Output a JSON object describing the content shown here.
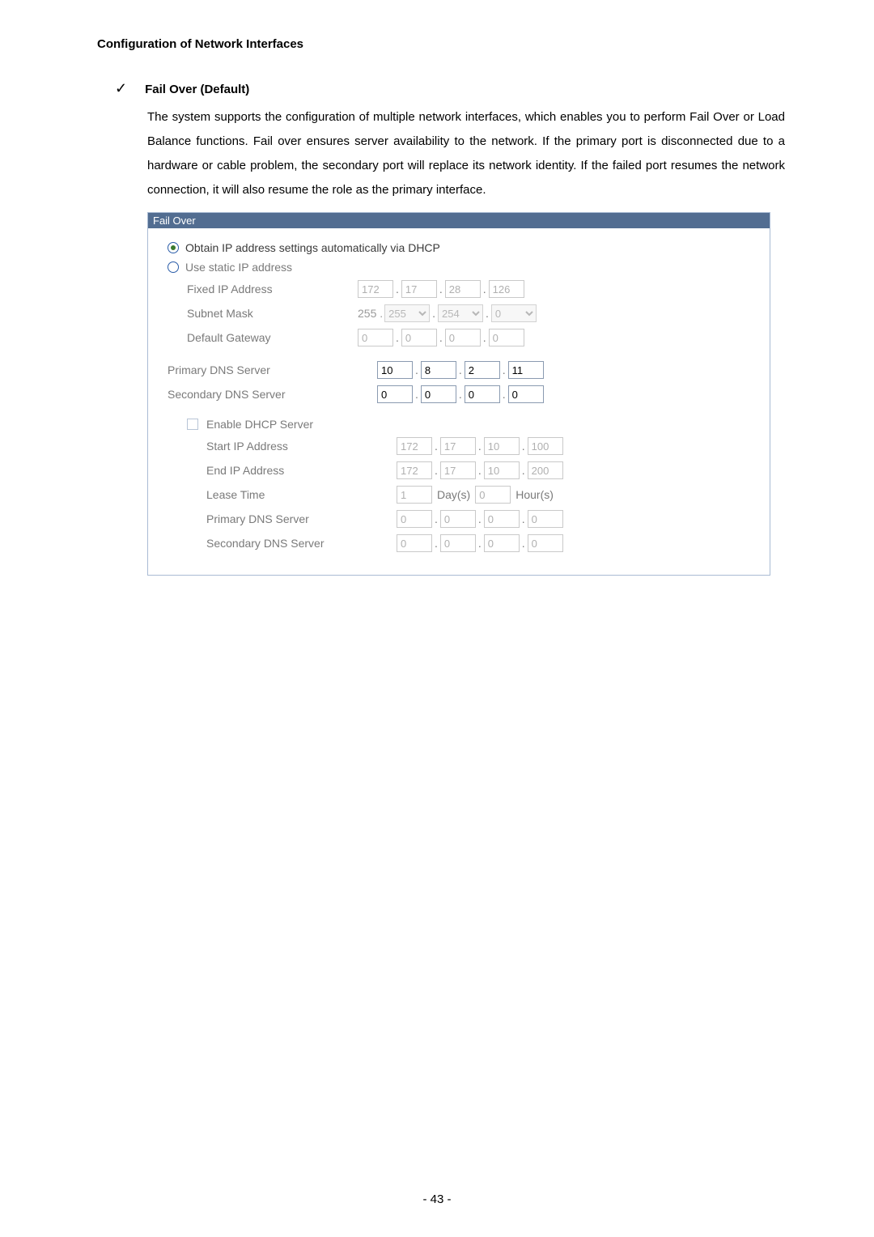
{
  "section": {
    "title": "Configuration of Network Interfaces"
  },
  "bullet": {
    "title": "Fail Over (Default)"
  },
  "description": "The system supports the configuration of multiple network interfaces, which enables you to perform Fail Over or Load Balance functions.  Fail over ensures server availability to the network.  If the primary port is disconnected due to a hardware or cable problem, the secondary port will replace its network identity.  If the failed port resumes the network connection, it will also resume the role as the primary interface.",
  "panel": {
    "header": "Fail Over",
    "opt_dhcp": "Obtain IP address settings automatically via DHCP",
    "opt_static": "Use static IP address",
    "fixed_ip_label": "Fixed IP Address",
    "fixed_ip": {
      "o1": "172",
      "o2": "17",
      "o3": "28",
      "o4": "126"
    },
    "subnet_label": "Subnet Mask",
    "subnet": {
      "o1": "255",
      "o2": "255",
      "o3": "254",
      "o4": "0"
    },
    "gateway_label": "Default Gateway",
    "gateway": {
      "o1": "0",
      "o2": "0",
      "o3": "0",
      "o4": "0"
    },
    "dns1_label": "Primary DNS Server",
    "dns1": {
      "o1": "10",
      "o2": "8",
      "o3": "2",
      "o4": "11"
    },
    "dns2_label": "Secondary DNS Server",
    "dns2": {
      "o1": "0",
      "o2": "0",
      "o3": "0",
      "o4": "0"
    },
    "dhcp": {
      "enable": "Enable DHCP Server",
      "start_label": "Start IP Address",
      "start": {
        "o1": "172",
        "o2": "17",
        "o3": "10",
        "o4": "100"
      },
      "end_label": "End IP Address",
      "end": {
        "o1": "172",
        "o2": "17",
        "o3": "10",
        "o4": "200"
      },
      "lease_label": "Lease Time",
      "lease_days": "1",
      "lease_day_unit": "Day(s)",
      "lease_hours": "0",
      "lease_hour_unit": "Hour(s)",
      "dns1_label": "Primary DNS Server",
      "dns1": {
        "o1": "0",
        "o2": "0",
        "o3": "0",
        "o4": "0"
      },
      "dns2_label": "Secondary DNS Server",
      "dns2": {
        "o1": "0",
        "o2": "0",
        "o3": "0",
        "o4": "0"
      }
    }
  },
  "footer": {
    "page": "- 43 -"
  }
}
